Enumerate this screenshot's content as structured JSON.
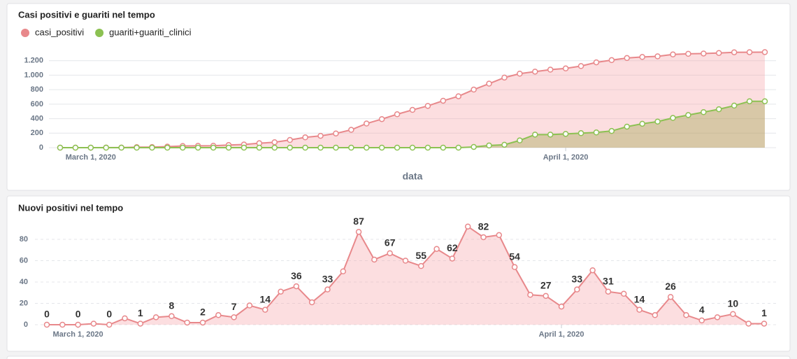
{
  "chart_data": [
    {
      "type": "area",
      "title": "Casi positivi e guariti nel tempo",
      "x_label": "data",
      "legend": "top-left",
      "grid": true,
      "x": [
        "2020-02-28",
        "2020-02-29",
        "2020-03-01",
        "2020-03-02",
        "2020-03-03",
        "2020-03-04",
        "2020-03-05",
        "2020-03-06",
        "2020-03-07",
        "2020-03-08",
        "2020-03-09",
        "2020-03-10",
        "2020-03-11",
        "2020-03-12",
        "2020-03-13",
        "2020-03-14",
        "2020-03-15",
        "2020-03-16",
        "2020-03-17",
        "2020-03-18",
        "2020-03-19",
        "2020-03-20",
        "2020-03-21",
        "2020-03-22",
        "2020-03-23",
        "2020-03-24",
        "2020-03-25",
        "2020-03-26",
        "2020-03-27",
        "2020-03-28",
        "2020-03-29",
        "2020-03-30",
        "2020-03-31",
        "2020-04-01",
        "2020-04-02",
        "2020-04-03",
        "2020-04-04",
        "2020-04-05",
        "2020-04-06",
        "2020-04-07",
        "2020-04-08",
        "2020-04-09",
        "2020-04-10",
        "2020-04-11",
        "2020-04-12",
        "2020-04-13",
        "2020-04-14"
      ],
      "xlim": [
        "2020-02-28",
        "2020-04-14"
      ],
      "xticks": [
        {
          "value": "2020-03-01",
          "label": "March 1, 2020"
        },
        {
          "value": "2020-04-01",
          "label": "April 1, 2020"
        }
      ],
      "ylim": [
        0,
        1400
      ],
      "yticks": [
        0,
        200,
        400,
        600,
        800,
        {
          "value": 1000,
          "label": "1.000"
        },
        {
          "value": 1200,
          "label": "1.200"
        }
      ],
      "series": [
        {
          "name": "casi_positivi",
          "color": "#e8888b",
          "fill": "rgba(245,160,165,0.35)",
          "values": [
            0,
            0,
            0,
            1,
            1,
            7,
            8,
            15,
            23,
            25,
            27,
            36,
            43,
            61,
            75,
            106,
            142,
            163,
            196,
            246,
            333,
            394,
            461,
            521,
            576,
            647,
            709,
            801,
            883,
            967,
            1021,
            1049,
            1076,
            1093,
            1126,
            1177,
            1208,
            1237,
            1251,
            1260,
            1286,
            1295,
            1299,
            1306,
            1316,
            1317,
            1318
          ]
        },
        {
          "name": "guariti+guariti_clinici",
          "color": "#8cc152",
          "fill": "rgba(150,160,60,0.35)",
          "values": [
            0,
            0,
            0,
            0,
            0,
            0,
            0,
            0,
            0,
            0,
            0,
            0,
            0,
            0,
            0,
            0,
            0,
            0,
            0,
            0,
            0,
            0,
            0,
            0,
            0,
            0,
            0,
            10,
            30,
            40,
            100,
            180,
            180,
            190,
            200,
            210,
            230,
            290,
            330,
            360,
            410,
            450,
            490,
            530,
            580,
            640,
            640
          ]
        }
      ]
    },
    {
      "type": "area",
      "title": "Nuovi positivi nel tempo",
      "grid": true,
      "data_labels": "every-other",
      "x": [
        "2020-02-28",
        "2020-02-29",
        "2020-03-01",
        "2020-03-02",
        "2020-03-03",
        "2020-03-04",
        "2020-03-05",
        "2020-03-06",
        "2020-03-07",
        "2020-03-08",
        "2020-03-09",
        "2020-03-10",
        "2020-03-11",
        "2020-03-12",
        "2020-03-13",
        "2020-03-14",
        "2020-03-15",
        "2020-03-16",
        "2020-03-17",
        "2020-03-18",
        "2020-03-19",
        "2020-03-20",
        "2020-03-21",
        "2020-03-22",
        "2020-03-23",
        "2020-03-24",
        "2020-03-25",
        "2020-03-26",
        "2020-03-27",
        "2020-03-28",
        "2020-03-29",
        "2020-03-30",
        "2020-03-31",
        "2020-04-01",
        "2020-04-02",
        "2020-04-03",
        "2020-04-04",
        "2020-04-05",
        "2020-04-06",
        "2020-04-07",
        "2020-04-08",
        "2020-04-09",
        "2020-04-10",
        "2020-04-11",
        "2020-04-12",
        "2020-04-13",
        "2020-04-14"
      ],
      "xlim": [
        "2020-02-28",
        "2020-04-14"
      ],
      "xticks": [
        {
          "value": "2020-03-01",
          "label": "March 1, 2020"
        },
        {
          "value": "2020-04-01",
          "label": "April 1, 2020"
        }
      ],
      "ylim": [
        0,
        100
      ],
      "yticks": [
        0,
        20,
        40,
        60,
        80
      ],
      "series": [
        {
          "name": "nuovi_positivi",
          "color": "#e8888b",
          "fill": "rgba(245,160,165,0.35)",
          "values": [
            0,
            0,
            0,
            1,
            0,
            6,
            1,
            7,
            8,
            2,
            2,
            9,
            7,
            18,
            14,
            31,
            36,
            21,
            33,
            50,
            87,
            61,
            67,
            60,
            55,
            71,
            62,
            92,
            82,
            84,
            54,
            28,
            27,
            17,
            33,
            51,
            31,
            29,
            14,
            9,
            26,
            9,
            4,
            7,
            10,
            1,
            1
          ]
        }
      ]
    }
  ]
}
